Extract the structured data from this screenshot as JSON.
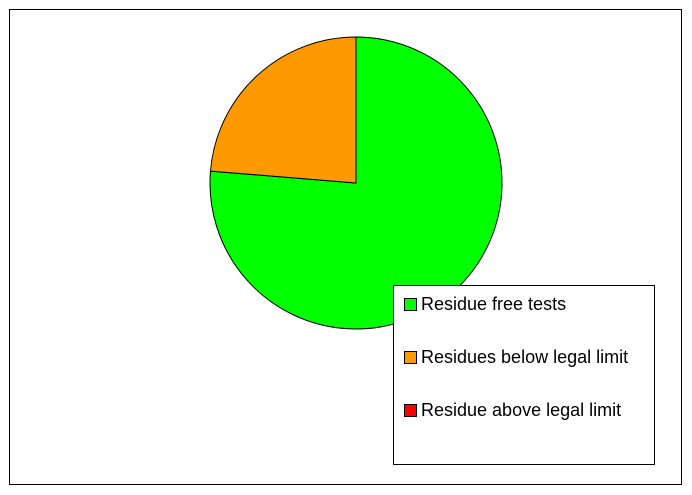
{
  "chart_data": {
    "type": "pie",
    "categories": [
      "Residue free tests",
      "Residue above legal limit",
      "Residues below legal limit"
    ],
    "values": [
      76.3,
      0,
      23.7
    ],
    "colors": [
      "#00ff00",
      "#ff0000",
      "#ff9900"
    ],
    "legend": "bottom-right"
  }
}
